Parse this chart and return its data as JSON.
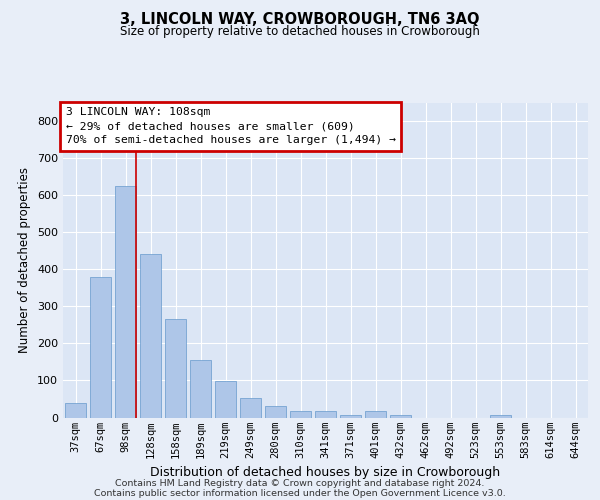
{
  "title": "3, LINCOLN WAY, CROWBOROUGH, TN6 3AQ",
  "subtitle": "Size of property relative to detached houses in Crowborough",
  "xlabel": "Distribution of detached houses by size in Crowborough",
  "ylabel": "Number of detached properties",
  "categories": [
    "37sqm",
    "67sqm",
    "98sqm",
    "128sqm",
    "158sqm",
    "189sqm",
    "219sqm",
    "249sqm",
    "280sqm",
    "310sqm",
    "341sqm",
    "371sqm",
    "401sqm",
    "432sqm",
    "462sqm",
    "492sqm",
    "523sqm",
    "553sqm",
    "583sqm",
    "614sqm",
    "644sqm"
  ],
  "values": [
    40,
    380,
    625,
    440,
    265,
    155,
    98,
    52,
    32,
    18,
    18,
    7,
    18,
    7,
    0,
    0,
    0,
    7,
    0,
    0,
    0
  ],
  "bar_color": "#aec6e8",
  "bar_edge_color": "#6699cc",
  "background_color": "#e8eef8",
  "plot_bg_color": "#dce6f5",
  "grid_color": "#ffffff",
  "annotation_box_text": "3 LINCOLN WAY: 108sqm\n← 29% of detached houses are smaller (609)\n70% of semi-detached houses are larger (1,494) →",
  "annotation_box_color": "#ffffff",
  "annotation_box_edge_color": "#cc0000",
  "annotation_line_color": "#cc0000",
  "ylim": [
    0,
    850
  ],
  "yticks": [
    0,
    100,
    200,
    300,
    400,
    500,
    600,
    700,
    800
  ],
  "footer_line1": "Contains HM Land Registry data © Crown copyright and database right 2024.",
  "footer_line2": "Contains public sector information licensed under the Open Government Licence v3.0."
}
